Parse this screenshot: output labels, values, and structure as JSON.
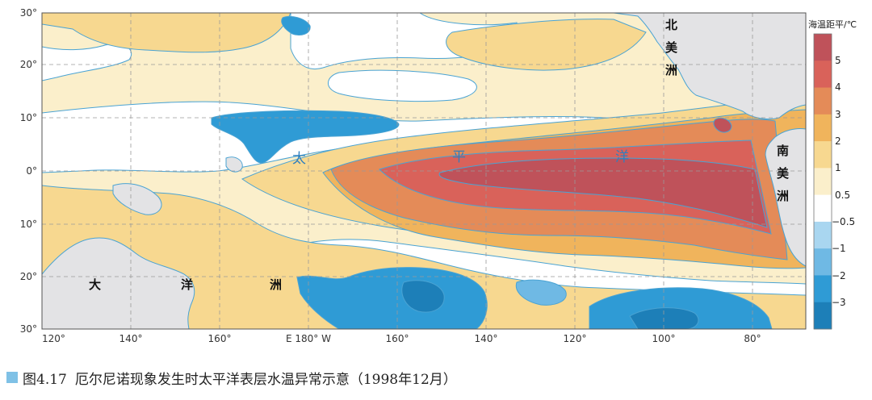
{
  "map": {
    "lat_labels": [
      "30°",
      "20°",
      "10°",
      "0°",
      "10°",
      "20°",
      "30°"
    ],
    "lon_labels": [
      "120°",
      "140°",
      "160°",
      "E 180° W",
      "160°",
      "140°",
      "120°",
      "100°",
      "80°"
    ],
    "ocean_chars": [
      "太",
      "平",
      "洋"
    ],
    "continent_labels": {
      "north_america": [
        "北",
        "美",
        "洲"
      ],
      "south_america": [
        "南",
        "美",
        "洲"
      ],
      "oceania": [
        "大",
        "洋",
        "洲"
      ]
    }
  },
  "legend": {
    "title": "海温距平/℃",
    "labels": [
      "5",
      "4",
      "3",
      "2",
      "1",
      "0.5",
      "−0.5",
      "−1",
      "−2",
      "−3"
    ],
    "colors": [
      "#bf525a",
      "#d9625a",
      "#e48b58",
      "#f0b45c",
      "#f7d890",
      "#fbefcb",
      "#ffffff",
      "#a9d6f0",
      "#6fb9e4",
      "#2f9bd5",
      "#1d7fb8"
    ]
  },
  "caption": {
    "figure_number": "图4.17",
    "text": "厄尔尼诺现象发生时太平洋表层水温异常示意（1998年12月）"
  },
  "colors": {
    "land": "#e3e3e5",
    "contour_line": "#4aa3d3",
    "grid": "#9a9a9a"
  }
}
